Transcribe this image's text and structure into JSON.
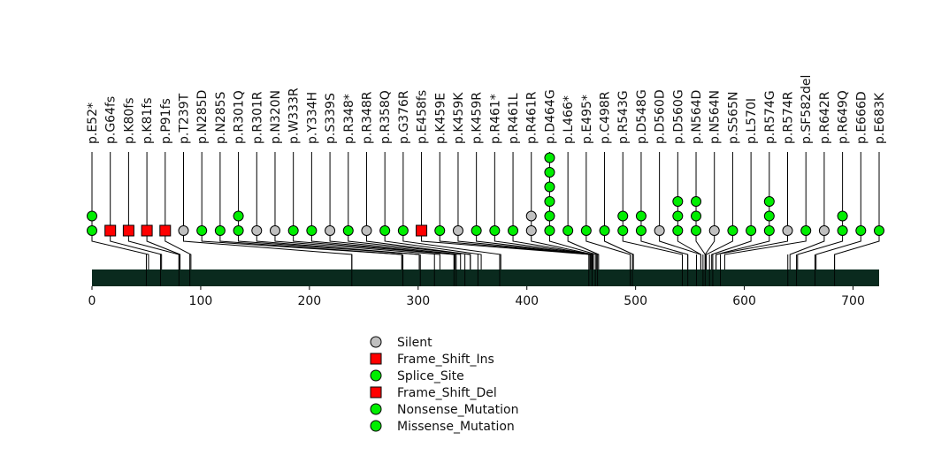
{
  "chart_data": {
    "type": "lollipop",
    "title": "",
    "x_axis": {
      "ticks": [
        0,
        100,
        200,
        300,
        400,
        500,
        600,
        700
      ],
      "range": [
        0,
        724
      ]
    },
    "protein_bar_color": "#0a2a1e",
    "domain_boundaries": [
      50,
      63,
      80,
      90,
      239,
      286,
      302,
      315,
      333,
      335,
      343,
      355,
      375,
      457,
      460,
      463,
      465,
      495,
      497,
      543,
      548,
      556,
      562,
      564,
      568,
      571,
      578,
      640,
      648,
      665,
      683
    ],
    "legend": [
      {
        "label": "Silent",
        "color": "#c0c0c0",
        "shape": "circle"
      },
      {
        "label": "Frame_Shift_Ins",
        "color": "#ff0000",
        "shape": "square"
      },
      {
        "label": "Splice_Site",
        "color": "#00ee00",
        "shape": "circle"
      },
      {
        "label": "Frame_Shift_Del",
        "color": "#ff0000",
        "shape": "square"
      },
      {
        "label": "Nonsense_Mutation",
        "color": "#00ee00",
        "shape": "circle"
      },
      {
        "label": "Missense_Mutation",
        "color": "#00ee00",
        "shape": "circle"
      }
    ],
    "mutations": [
      {
        "label": "p.E52*",
        "pos": 52,
        "markers": [
          {
            "type": "Nonsense_Mutation",
            "color": "#00ee00",
            "shape": "circle"
          },
          {
            "type": "Nonsense_Mutation",
            "color": "#00ee00",
            "shape": "circle"
          }
        ]
      },
      {
        "label": "p.G64fs",
        "pos": 64,
        "markers": [
          {
            "type": "Frame_Shift_Del",
            "color": "#ff0000",
            "shape": "square"
          }
        ]
      },
      {
        "label": "p.K80fs",
        "pos": 80,
        "markers": [
          {
            "type": "Frame_Shift_Del",
            "color": "#ff0000",
            "shape": "square"
          }
        ]
      },
      {
        "label": "p.K81fs",
        "pos": 81,
        "markers": [
          {
            "type": "Frame_Shift_Del",
            "color": "#ff0000",
            "shape": "square"
          }
        ]
      },
      {
        "label": "p.P91fs",
        "pos": 91,
        "markers": [
          {
            "type": "Frame_Shift_Ins",
            "color": "#ff0000",
            "shape": "square"
          }
        ]
      },
      {
        "label": "p.T239T",
        "pos": 239,
        "markers": [
          {
            "type": "Silent",
            "color": "#c0c0c0",
            "shape": "circle"
          }
        ]
      },
      {
        "label": "p.N285D",
        "pos": 285,
        "markers": [
          {
            "type": "Missense_Mutation",
            "color": "#00ee00",
            "shape": "circle"
          }
        ]
      },
      {
        "label": "p.N285S",
        "pos": 285,
        "markers": [
          {
            "type": "Missense_Mutation",
            "color": "#00ee00",
            "shape": "circle"
          }
        ]
      },
      {
        "label": "p.R301Q",
        "pos": 301,
        "markers": [
          {
            "type": "Missense_Mutation",
            "color": "#00ee00",
            "shape": "circle"
          },
          {
            "type": "Missense_Mutation",
            "color": "#00ee00",
            "shape": "circle"
          }
        ]
      },
      {
        "label": "p.R301R",
        "pos": 301,
        "markers": [
          {
            "type": "Silent",
            "color": "#c0c0c0",
            "shape": "circle"
          }
        ]
      },
      {
        "label": "p.N320N",
        "pos": 320,
        "markers": [
          {
            "type": "Silent",
            "color": "#c0c0c0",
            "shape": "circle"
          }
        ]
      },
      {
        "label": "p.W333R",
        "pos": 333,
        "markers": [
          {
            "type": "Missense_Mutation",
            "color": "#00ee00",
            "shape": "circle"
          }
        ]
      },
      {
        "label": "p.Y334H",
        "pos": 334,
        "markers": [
          {
            "type": "Missense_Mutation",
            "color": "#00ee00",
            "shape": "circle"
          }
        ]
      },
      {
        "label": "p.S339S",
        "pos": 339,
        "markers": [
          {
            "type": "Silent",
            "color": "#c0c0c0",
            "shape": "circle"
          }
        ]
      },
      {
        "label": "p.R348*",
        "pos": 348,
        "markers": [
          {
            "type": "Nonsense_Mutation",
            "color": "#00ee00",
            "shape": "circle"
          }
        ]
      },
      {
        "label": "p.R348R",
        "pos": 348,
        "markers": [
          {
            "type": "Silent",
            "color": "#c0c0c0",
            "shape": "circle"
          }
        ]
      },
      {
        "label": "p.R358Q",
        "pos": 358,
        "markers": [
          {
            "type": "Missense_Mutation",
            "color": "#00ee00",
            "shape": "circle"
          }
        ]
      },
      {
        "label": "p.G376R",
        "pos": 376,
        "markers": [
          {
            "type": "Missense_Mutation",
            "color": "#00ee00",
            "shape": "circle"
          }
        ]
      },
      {
        "label": "p.E458fs",
        "pos": 458,
        "markers": [
          {
            "type": "Frame_Shift_Ins",
            "color": "#ff0000",
            "shape": "square"
          }
        ]
      },
      {
        "label": "p.K459E",
        "pos": 459,
        "markers": [
          {
            "type": "Missense_Mutation",
            "color": "#00ee00",
            "shape": "circle"
          }
        ]
      },
      {
        "label": "p.K459K",
        "pos": 459,
        "markers": [
          {
            "type": "Silent",
            "color": "#c0c0c0",
            "shape": "circle"
          }
        ]
      },
      {
        "label": "p.K459R",
        "pos": 459,
        "markers": [
          {
            "type": "Missense_Mutation",
            "color": "#00ee00",
            "shape": "circle"
          }
        ]
      },
      {
        "label": "p.R461*",
        "pos": 461,
        "markers": [
          {
            "type": "Nonsense_Mutation",
            "color": "#00ee00",
            "shape": "circle"
          }
        ]
      },
      {
        "label": "p.R461L",
        "pos": 461,
        "markers": [
          {
            "type": "Missense_Mutation",
            "color": "#00ee00",
            "shape": "circle"
          }
        ]
      },
      {
        "label": "p.R461R",
        "pos": 461,
        "markers": [
          {
            "type": "Silent",
            "color": "#c0c0c0",
            "shape": "circle"
          },
          {
            "type": "Silent",
            "color": "#c0c0c0",
            "shape": "circle"
          }
        ]
      },
      {
        "label": "p.D464G",
        "pos": 464,
        "markers": [
          {
            "type": "Missense_Mutation",
            "color": "#00ee00",
            "shape": "circle"
          },
          {
            "type": "Missense_Mutation",
            "color": "#00ee00",
            "shape": "circle"
          },
          {
            "type": "Missense_Mutation",
            "color": "#00ee00",
            "shape": "circle"
          },
          {
            "type": "Missense_Mutation",
            "color": "#00ee00",
            "shape": "circle"
          },
          {
            "type": "Missense_Mutation",
            "color": "#00ee00",
            "shape": "circle"
          },
          {
            "type": "Missense_Mutation",
            "color": "#00ee00",
            "shape": "circle"
          }
        ]
      },
      {
        "label": "p.L466*",
        "pos": 466,
        "markers": [
          {
            "type": "Nonsense_Mutation",
            "color": "#00ee00",
            "shape": "circle"
          }
        ]
      },
      {
        "label": "p.E495*",
        "pos": 495,
        "markers": [
          {
            "type": "Nonsense_Mutation",
            "color": "#00ee00",
            "shape": "circle"
          }
        ]
      },
      {
        "label": "p.C498R",
        "pos": 498,
        "markers": [
          {
            "type": "Missense_Mutation",
            "color": "#00ee00",
            "shape": "circle"
          }
        ]
      },
      {
        "label": "p.R543G",
        "pos": 543,
        "markers": [
          {
            "type": "Missense_Mutation",
            "color": "#00ee00",
            "shape": "circle"
          },
          {
            "type": "Missense_Mutation",
            "color": "#00ee00",
            "shape": "circle"
          }
        ]
      },
      {
        "label": "p.D548G",
        "pos": 548,
        "markers": [
          {
            "type": "Missense_Mutation",
            "color": "#00ee00",
            "shape": "circle"
          },
          {
            "type": "Missense_Mutation",
            "color": "#00ee00",
            "shape": "circle"
          }
        ]
      },
      {
        "label": "p.D560D",
        "pos": 560,
        "markers": [
          {
            "type": "Silent",
            "color": "#c0c0c0",
            "shape": "circle"
          }
        ]
      },
      {
        "label": "p.D560G",
        "pos": 560,
        "markers": [
          {
            "type": "Missense_Mutation",
            "color": "#00ee00",
            "shape": "circle"
          },
          {
            "type": "Missense_Mutation",
            "color": "#00ee00",
            "shape": "circle"
          },
          {
            "type": "Missense_Mutation",
            "color": "#00ee00",
            "shape": "circle"
          }
        ]
      },
      {
        "label": "p.N564D",
        "pos": 564,
        "markers": [
          {
            "type": "Missense_Mutation",
            "color": "#00ee00",
            "shape": "circle"
          },
          {
            "type": "Missense_Mutation",
            "color": "#00ee00",
            "shape": "circle"
          },
          {
            "type": "Missense_Mutation",
            "color": "#00ee00",
            "shape": "circle"
          }
        ]
      },
      {
        "label": "p.N564N",
        "pos": 564,
        "markers": [
          {
            "type": "Silent",
            "color": "#c0c0c0",
            "shape": "circle"
          }
        ]
      },
      {
        "label": "p.S565N",
        "pos": 565,
        "markers": [
          {
            "type": "Missense_Mutation",
            "color": "#00ee00",
            "shape": "circle"
          }
        ]
      },
      {
        "label": "p.L570I",
        "pos": 570,
        "markers": [
          {
            "type": "Missense_Mutation",
            "color": "#00ee00",
            "shape": "circle"
          }
        ]
      },
      {
        "label": "p.R574G",
        "pos": 574,
        "markers": [
          {
            "type": "Missense_Mutation",
            "color": "#00ee00",
            "shape": "circle"
          },
          {
            "type": "Missense_Mutation",
            "color": "#00ee00",
            "shape": "circle"
          },
          {
            "type": "Missense_Mutation",
            "color": "#00ee00",
            "shape": "circle"
          }
        ]
      },
      {
        "label": "p.R574R",
        "pos": 574,
        "markers": [
          {
            "type": "Silent",
            "color": "#c0c0c0",
            "shape": "circle"
          }
        ]
      },
      {
        "label": "p.SF582del",
        "pos": 582,
        "markers": [
          {
            "type": "Missense_Mutation",
            "color": "#00ee00",
            "shape": "circle"
          }
        ]
      },
      {
        "label": "p.R642R",
        "pos": 642,
        "markers": [
          {
            "type": "Silent",
            "color": "#c0c0c0",
            "shape": "circle"
          }
        ]
      },
      {
        "label": "p.R649Q",
        "pos": 649,
        "markers": [
          {
            "type": "Missense_Mutation",
            "color": "#00ee00",
            "shape": "circle"
          },
          {
            "type": "Missense_Mutation",
            "color": "#00ee00",
            "shape": "circle"
          }
        ]
      },
      {
        "label": "p.E666D",
        "pos": 666,
        "markers": [
          {
            "type": "Missense_Mutation",
            "color": "#00ee00",
            "shape": "circle"
          }
        ]
      },
      {
        "label": "p.E683K",
        "pos": 683,
        "markers": [
          {
            "type": "Missense_Mutation",
            "color": "#00ee00",
            "shape": "circle"
          }
        ]
      }
    ]
  }
}
